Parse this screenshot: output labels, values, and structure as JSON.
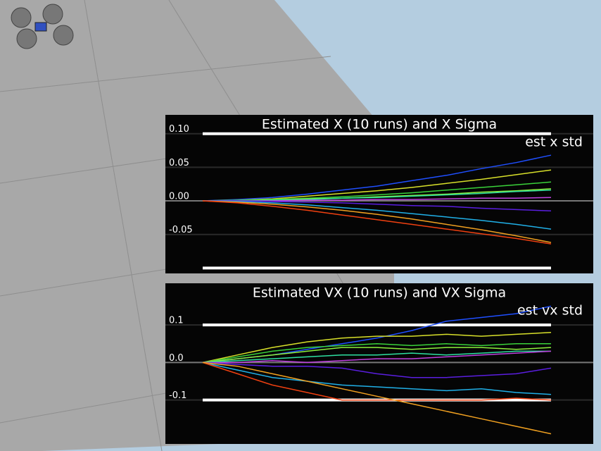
{
  "chart_data": [
    {
      "type": "line",
      "title": "Estimated X (10 runs) and X Sigma",
      "ylim": [
        -0.108,
        0.128
      ],
      "yticks": [
        {
          "value": 0.1,
          "label": "0.10"
        },
        0.05,
        {
          "value": 0,
          "label": "0.00"
        },
        -0.05
      ],
      "std": {
        "name": "est x std",
        "color": "#ffffff",
        "values": [
          0.1,
          -0.1
        ]
      },
      "series": [
        {
          "color": "#1f4fff",
          "values": [
            0,
            0.002,
            0.005,
            0.01,
            0.016,
            0.022,
            0.03,
            0.038,
            0.048,
            0.057,
            0.068
          ]
        },
        {
          "color": "#d8e02a",
          "values": [
            0,
            0.001,
            0.003,
            0.007,
            0.011,
            0.015,
            0.02,
            0.026,
            0.032,
            0.039,
            0.046
          ]
        },
        {
          "color": "#3ad23a",
          "values": [
            0,
            0.001,
            0.002,
            0.004,
            0.006,
            0.009,
            0.012,
            0.016,
            0.02,
            0.024,
            0.028
          ]
        },
        {
          "color": "#8cf03c",
          "values": [
            0,
            0,
            0.001,
            0.003,
            0.004,
            0.006,
            0.008,
            0.01,
            0.013,
            0.015,
            0.018
          ]
        },
        {
          "color": "#2ee0a0",
          "values": [
            0,
            0,
            0.001,
            0.002,
            0.004,
            0.005,
            0.007,
            0.009,
            0.011,
            0.014,
            0.016
          ]
        },
        {
          "color": "#c040e0",
          "values": [
            0,
            0,
            0,
            0.001,
            0.001,
            0.002,
            0.002,
            0.003,
            0.004,
            0.004,
            0.005
          ]
        },
        {
          "color": "#5a1ee0",
          "values": [
            0,
            0,
            -0.001,
            -0.002,
            -0.003,
            -0.005,
            -0.007,
            -0.008,
            -0.011,
            -0.013,
            -0.015
          ]
        },
        {
          "color": "#20b0e8",
          "values": [
            0,
            -0.001,
            -0.003,
            -0.006,
            -0.01,
            -0.014,
            -0.019,
            -0.024,
            -0.029,
            -0.035,
            -0.042
          ]
        },
        {
          "color": "#f0a020",
          "values": [
            0,
            -0.002,
            -0.005,
            -0.009,
            -0.014,
            -0.02,
            -0.027,
            -0.035,
            -0.043,
            -0.052,
            -0.062
          ]
        },
        {
          "color": "#f04010",
          "values": [
            0,
            -0.003,
            -0.008,
            -0.014,
            -0.021,
            -0.028,
            -0.035,
            -0.042,
            -0.049,
            -0.056,
            -0.064
          ]
        }
      ]
    },
    {
      "type": "line",
      "title": "Estimated VX (10 runs) and VX Sigma",
      "ylim": [
        -0.217,
        0.211
      ],
      "yticks": [
        0.1,
        {
          "value": 0,
          "label": "0.0"
        },
        -0.1
      ],
      "std": {
        "name": "est vx std",
        "color": "#ffffff",
        "values": [
          0.1,
          -0.1
        ]
      },
      "series": [
        {
          "color": "#1f4fff",
          "values": [
            0,
            0.01,
            0.02,
            0.035,
            0.05,
            0.065,
            0.085,
            0.11,
            0.12,
            0.13,
            0.15
          ]
        },
        {
          "color": "#d8e02a",
          "values": [
            0,
            0.02,
            0.04,
            0.055,
            0.065,
            0.07,
            0.07,
            0.075,
            0.07,
            0.075,
            0.08
          ]
        },
        {
          "color": "#3ad23a",
          "values": [
            0,
            0.015,
            0.03,
            0.04,
            0.045,
            0.05,
            0.045,
            0.05,
            0.045,
            0.05,
            0.05
          ]
        },
        {
          "color": "#8cf03c",
          "values": [
            0,
            0.01,
            0.02,
            0.03,
            0.04,
            0.04,
            0.035,
            0.04,
            0.04,
            0.035,
            0.04
          ]
        },
        {
          "color": "#2ee0a0",
          "values": [
            0,
            0.005,
            0.01,
            0.015,
            0.02,
            0.02,
            0.025,
            0.02,
            0.025,
            0.03,
            0.03
          ]
        },
        {
          "color": "#c040e0",
          "values": [
            0,
            0,
            0.005,
            0,
            0.005,
            0.01,
            0.01,
            0.015,
            0.02,
            0.025,
            0.03
          ]
        },
        {
          "color": "#5a1ee0",
          "values": [
            0,
            -0.005,
            -0.01,
            -0.01,
            -0.015,
            -0.03,
            -0.04,
            -0.04,
            -0.035,
            -0.03,
            -0.015
          ]
        },
        {
          "color": "#20b0e8",
          "values": [
            0,
            -0.02,
            -0.04,
            -0.05,
            -0.06,
            -0.065,
            -0.07,
            -0.075,
            -0.07,
            -0.08,
            -0.085
          ]
        },
        {
          "color": "#f04010",
          "values": [
            0,
            -0.03,
            -0.06,
            -0.08,
            -0.1,
            -0.1,
            -0.1,
            -0.1,
            -0.1,
            -0.095,
            -0.1
          ]
        },
        {
          "color": "#f0a020",
          "values": [
            0,
            -0.01,
            -0.03,
            -0.05,
            -0.07,
            -0.09,
            -0.11,
            -0.13,
            -0.15,
            -0.17,
            -0.19
          ]
        }
      ]
    }
  ]
}
